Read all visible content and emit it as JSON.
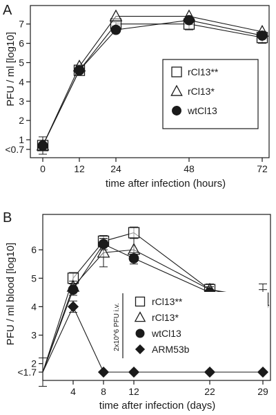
{
  "chart_data": [
    {
      "type": "line",
      "panel_label": "A",
      "xlabel": "time after infection (hours)",
      "ylabel": "PFU / ml [log10]",
      "x_ticks": [
        "0",
        "12",
        "24",
        "48",
        "72"
      ],
      "y_ticks": [
        "<0.7",
        "1",
        "2",
        "3",
        "4",
        "5",
        "6",
        "7"
      ],
      "xlim": [
        0,
        72
      ],
      "ylim": [
        0.7,
        7.6
      ],
      "grid": false,
      "legend_position": "center-right",
      "x": [
        0,
        12,
        24,
        48,
        72
      ],
      "series": [
        {
          "name": "rCl13**",
          "marker": "open-square",
          "values": [
            0.7,
            4.6,
            7.0,
            7.0,
            6.3
          ],
          "err": [
            0.45,
            0.15,
            0.1,
            0.3,
            0.3
          ]
        },
        {
          "name": "rCl13*",
          "marker": "open-triangle",
          "values": [
            0.7,
            4.8,
            7.4,
            7.4,
            6.6
          ],
          "err": [
            0,
            0,
            0,
            0,
            0
          ]
        },
        {
          "name": "wtCl13",
          "marker": "filled-circle",
          "values": [
            0.7,
            4.6,
            6.7,
            7.2,
            6.4
          ],
          "err": [
            0,
            0,
            0,
            0,
            0
          ]
        }
      ]
    },
    {
      "type": "line",
      "panel_label": "B",
      "xlabel": "time after infection (days)",
      "ylabel": "PFU / ml blood [log10]",
      "x_ticks": [
        "4",
        "8",
        "12",
        "22",
        "29"
      ],
      "y_ticks": [
        "<1.7",
        "2",
        "3",
        "4",
        "5",
        "6"
      ],
      "xlim": [
        0,
        30
      ],
      "ylim": [
        1.7,
        7.0
      ],
      "grid": false,
      "legend_position": "center-right",
      "legend_note": "2x10^6 PFU i.v.",
      "x": [
        0,
        4,
        8,
        12,
        22,
        29
      ],
      "series": [
        {
          "name": "rCl13**",
          "marker": "open-square",
          "values": [
            1.7,
            5.0,
            6.3,
            6.6,
            4.6,
            4.3
          ],
          "err": [
            0.5,
            0.2,
            0.2,
            0.2,
            0.2,
            0.3
          ]
        },
        {
          "name": "rCl13*",
          "marker": "open-triangle",
          "values": [
            1.7,
            4.7,
            5.9,
            6.0,
            4.6,
            4.2
          ],
          "err": [
            0,
            0.2,
            0.5,
            0.4,
            0.2,
            0.3
          ]
        },
        {
          "name": "wtCl13",
          "marker": "filled-circle",
          "values": [
            1.7,
            4.6,
            6.2,
            5.7,
            4.5,
            4.0
          ],
          "err": [
            0,
            0.2,
            0.2,
            0.2,
            0.2,
            0.8
          ]
        },
        {
          "name": "ARM53b",
          "marker": "filled-diamond",
          "values": [
            1.7,
            4.0,
            1.7,
            1.7,
            1.7,
            1.7
          ],
          "err": [
            0,
            0.2,
            0,
            0,
            0,
            0
          ]
        }
      ]
    }
  ]
}
